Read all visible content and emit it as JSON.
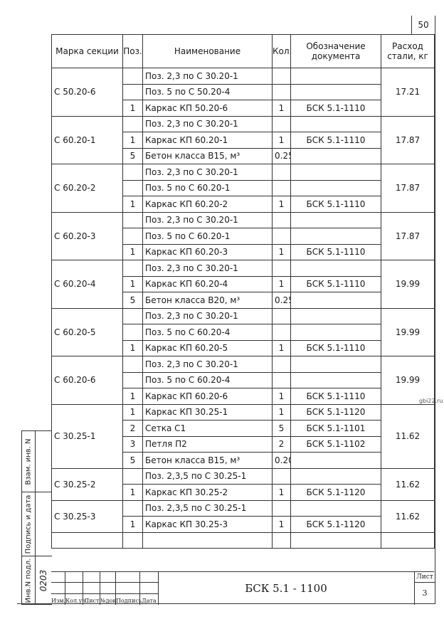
{
  "page_number": "50",
  "watermark": "gbi22.ru",
  "table": {
    "headers": {
      "mark": "Марка секции",
      "pos": "Поз.",
      "name": "Наименование",
      "qty": "Кол.",
      "doc": "Обозначение документа",
      "steel": "Расход стали, кг"
    },
    "groups": [
      {
        "mark": "С 50.20-6",
        "steel": "17.21",
        "items": [
          {
            "pos": "",
            "name": "Поз. 2,3 по С 30.20-1",
            "qty": "",
            "doc": ""
          },
          {
            "pos": "",
            "name": "Поз. 5 по С 50.20-4",
            "qty": "",
            "doc": ""
          },
          {
            "pos": "1",
            "name": "Каркас КП 50.20-6",
            "qty": "1",
            "doc": "БСК 5.1-1110"
          }
        ]
      },
      {
        "mark": "С 60.20-1",
        "steel": "17.87",
        "items": [
          {
            "pos": "",
            "name": "Поз. 2,3 по С 30.20-1",
            "qty": "",
            "doc": ""
          },
          {
            "pos": "1",
            "name": "Каркас КП 60.20-1",
            "qty": "1",
            "doc": "БСК 5.1-1110"
          },
          {
            "pos": "5",
            "name": "Бетон класса В15, м³",
            "qty": "0.25",
            "doc": ""
          }
        ]
      },
      {
        "mark": "С 60.20-2",
        "steel": "17.87",
        "items": [
          {
            "pos": "",
            "name": "Поз. 2,3 по С 30.20-1",
            "qty": "",
            "doc": ""
          },
          {
            "pos": "",
            "name": "Поз. 5 по С 60.20-1",
            "qty": "",
            "doc": ""
          },
          {
            "pos": "1",
            "name": "Каркас КП 60.20-2",
            "qty": "1",
            "doc": "БСК 5.1-1110"
          }
        ]
      },
      {
        "mark": "С 60.20-3",
        "steel": "17.87",
        "items": [
          {
            "pos": "",
            "name": "Поз. 2,3 по С 30.20-1",
            "qty": "",
            "doc": ""
          },
          {
            "pos": "",
            "name": "Поз. 5 по С 60.20-1",
            "qty": "",
            "doc": ""
          },
          {
            "pos": "1",
            "name": "Каркас КП 60.20-3",
            "qty": "1",
            "doc": "БСК 5.1-1110"
          }
        ]
      },
      {
        "mark": "С 60.20-4",
        "steel": "19.99",
        "items": [
          {
            "pos": "",
            "name": "Поз. 2,3 по С 30.20-1",
            "qty": "",
            "doc": ""
          },
          {
            "pos": "1",
            "name": "Каркас КП 60.20-4",
            "qty": "1",
            "doc": "БСК 5.1-1110"
          },
          {
            "pos": "5",
            "name": "Бетон класса В20, м³",
            "qty": "0.25",
            "doc": ""
          }
        ]
      },
      {
        "mark": "С 60.20-5",
        "steel": "19.99",
        "items": [
          {
            "pos": "",
            "name": "Поз. 2,3 по С 30.20-1",
            "qty": "",
            "doc": ""
          },
          {
            "pos": "",
            "name": "Поз. 5 по С 60.20-4",
            "qty": "",
            "doc": ""
          },
          {
            "pos": "1",
            "name": "Каркас КП 60.20-5",
            "qty": "1",
            "doc": "БСК 5.1-1110"
          }
        ]
      },
      {
        "mark": "С 60.20-6",
        "steel": "19.99",
        "items": [
          {
            "pos": "",
            "name": "Поз. 2,3 по С 30.20-1",
            "qty": "",
            "doc": ""
          },
          {
            "pos": "",
            "name": "Поз. 5 по С 60.20-4",
            "qty": "",
            "doc": ""
          },
          {
            "pos": "1",
            "name": "Каркас КП 60.20-6",
            "qty": "1",
            "doc": "БСК 5.1-1110"
          }
        ]
      },
      {
        "mark": "С 30.25-1",
        "steel": "11.62",
        "items": [
          {
            "pos": "1",
            "name": "Каркас КП 30.25-1",
            "qty": "1",
            "doc": "БСК 5.1-1120"
          },
          {
            "pos": "2",
            "name": "Сетка  С1",
            "qty": "5",
            "doc": "БСК 5.1-1101"
          },
          {
            "pos": "3",
            "name": "Петля П2",
            "qty": "2",
            "doc": "БСК 5.1-1102"
          },
          {
            "pos": "5",
            "name": "Бетон класса В15, м³",
            "qty": "0.20",
            "doc": ""
          }
        ]
      },
      {
        "mark": "С 30.25-2",
        "steel": "11.62",
        "items": [
          {
            "pos": "",
            "name": "Поз. 2,3,5 по С 30.25-1",
            "qty": "",
            "doc": ""
          },
          {
            "pos": "1",
            "name": "Каркас КП 30.25-2",
            "qty": "1",
            "doc": "БСК 5.1-1120"
          }
        ]
      },
      {
        "mark": "С 30.25-3",
        "steel": "11.62",
        "items": [
          {
            "pos": "",
            "name": "Поз. 2,3,5 по С 30.25-1",
            "qty": "",
            "doc": ""
          },
          {
            "pos": "1",
            "name": "Каркас КП 30.25-3",
            "qty": "1",
            "doc": "БСК 5.1-1120"
          }
        ]
      }
    ]
  },
  "sidebar": {
    "replace_inv": "Взам. инв. N",
    "sign_date": "Подпись и дата",
    "orig_inv": "Инв.N подл.",
    "orig_inv_value": "0203"
  },
  "title_block": {
    "columns": [
      "Изм.",
      "Кол.уч.",
      "Лист",
      "№док.",
      "Подпись",
      "Дата"
    ],
    "designation": "БСК 5.1 - 1100",
    "sheet_label": "Лист",
    "sheet_number": "3"
  }
}
